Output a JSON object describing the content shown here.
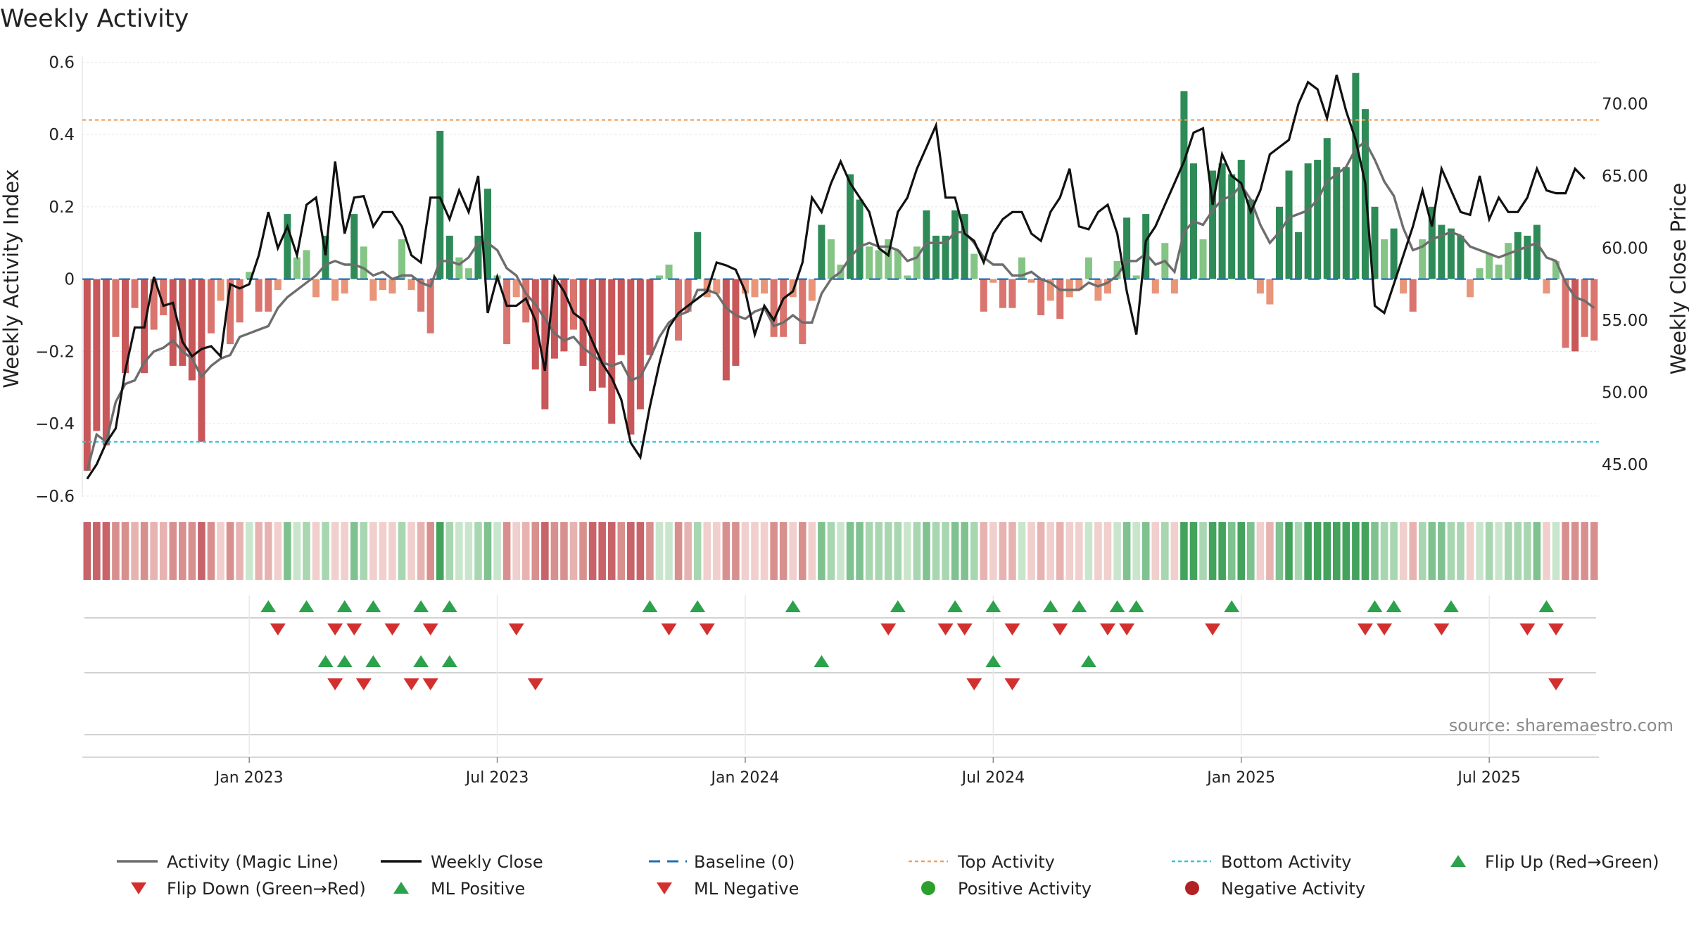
{
  "chart_data": {
    "type": "bar",
    "title": "Weekly Activity",
    "ylabel": "Weekly Activity Index",
    "y2label": "Weekly Close Price",
    "ylim": [
      -0.62,
      0.62
    ],
    "y2lim": [
      42.5,
      73.5
    ],
    "yticks": [
      0.6,
      0.4,
      0.2,
      0,
      -0.2,
      -0.4,
      -0.6
    ],
    "ytick_labels": [
      "0.6",
      "0.4",
      "0.2",
      "0",
      "−0.2",
      "−0.4",
      "−0.6"
    ],
    "y2ticks": [
      70,
      65,
      60,
      55,
      50,
      45
    ],
    "y2tick_labels": [
      "70.00",
      "65.00",
      "60.00",
      "55.00",
      "50.00",
      "45.00"
    ],
    "xticks": [
      {
        "label": "Jan 2023",
        "index": 17
      },
      {
        "label": "Jul 2023",
        "index": 43
      },
      {
        "label": "Jan 2024",
        "index": 69
      },
      {
        "label": "Jul 2024",
        "index": 95
      },
      {
        "label": "Jan 2025",
        "index": 121
      },
      {
        "label": "Jul 2025",
        "index": 147
      }
    ],
    "top_activity": 0.44,
    "bottom_activity": -0.45,
    "baseline": 0,
    "series": [
      {
        "name": "Weekly Activity Index",
        "values": [
          -0.53,
          -0.42,
          -0.46,
          -0.16,
          -0.26,
          -0.08,
          -0.26,
          -0.14,
          -0.1,
          -0.24,
          -0.24,
          -0.28,
          -0.45,
          -0.15,
          -0.06,
          -0.18,
          -0.12,
          0.02,
          -0.09,
          -0.09,
          -0.03,
          0.18,
          0.06,
          0.08,
          -0.05,
          0.12,
          -0.06,
          -0.04,
          0.18,
          0.09,
          -0.06,
          -0.03,
          -0.04,
          0.11,
          -0.03,
          -0.09,
          -0.15,
          0.41,
          0.12,
          0.06,
          0.03,
          0.12,
          0.25,
          0.01,
          -0.18,
          -0.05,
          -0.12,
          -0.25,
          -0.36,
          -0.22,
          -0.2,
          -0.14,
          -0.24,
          -0.31,
          -0.3,
          -0.4,
          -0.21,
          -0.43,
          -0.36,
          -0.21,
          0.01,
          0.04,
          -0.17,
          -0.09,
          0.13,
          -0.05,
          -0.04,
          -0.28,
          -0.24,
          -0.04,
          -0.05,
          -0.04,
          -0.16,
          -0.16,
          -0.05,
          -0.18,
          -0.06,
          0.15,
          0.11,
          0.04,
          0.29,
          0.22,
          0.09,
          0.08,
          0.11,
          0.08,
          0.01,
          0.09,
          0.19,
          0.12,
          0.12,
          0.19,
          0.18,
          0.07,
          -0.09,
          -0.01,
          -0.08,
          -0.08,
          0.06,
          -0.01,
          -0.1,
          -0.06,
          -0.11,
          -0.05,
          -0.03,
          0.06,
          -0.06,
          -0.04,
          0.05,
          0.17,
          0.01,
          0.18,
          -0.04,
          0.1,
          -0.04,
          0.52,
          0.32,
          0.11,
          0.3,
          0.32,
          0.29,
          0.33,
          0.22,
          -0.04,
          -0.07,
          0.2,
          0.3,
          0.13,
          0.32,
          0.33,
          0.39,
          0.31,
          0.31,
          0.57,
          0.47,
          0.2,
          0.11,
          0.14,
          -0.04,
          -0.09,
          0.11,
          0.2,
          0.15,
          0.14,
          0.12,
          -0.05,
          0.03,
          0.07,
          0.04,
          0.1,
          0.13,
          0.12,
          0.15,
          -0.04,
          0.05,
          -0.19,
          -0.2,
          -0.16,
          -0.17
        ]
      },
      {
        "name": "Activity (Magic Line)",
        "values": [
          -0.53,
          -0.43,
          -0.45,
          -0.34,
          -0.29,
          -0.28,
          -0.23,
          -0.2,
          -0.19,
          -0.17,
          -0.2,
          -0.22,
          -0.27,
          -0.24,
          -0.22,
          -0.21,
          -0.16,
          -0.15,
          -0.14,
          -0.13,
          -0.08,
          -0.05,
          -0.03,
          -0.01,
          0.01,
          0.04,
          0.05,
          0.04,
          0.04,
          0.03,
          0.01,
          0.02,
          0.0,
          0.01,
          0.01,
          -0.01,
          -0.02,
          0.05,
          0.05,
          0.04,
          0.06,
          0.1,
          0.1,
          0.08,
          0.03,
          0.01,
          -0.04,
          -0.07,
          -0.11,
          -0.15,
          -0.17,
          -0.16,
          -0.19,
          -0.21,
          -0.23,
          -0.24,
          -0.23,
          -0.28,
          -0.27,
          -0.22,
          -0.16,
          -0.12,
          -0.1,
          -0.09,
          -0.03,
          -0.03,
          -0.04,
          -0.08,
          -0.1,
          -0.11,
          -0.09,
          -0.08,
          -0.13,
          -0.12,
          -0.1,
          -0.12,
          -0.12,
          -0.04,
          0.0,
          0.02,
          0.06,
          0.09,
          0.1,
          0.09,
          0.09,
          0.08,
          0.05,
          0.06,
          0.1,
          0.1,
          0.1,
          0.13,
          0.13,
          0.1,
          0.06,
          0.04,
          0.04,
          0.01,
          0.01,
          0.02,
          0.0,
          -0.01,
          -0.03,
          -0.03,
          -0.03,
          -0.01,
          -0.02,
          -0.01,
          0.01,
          0.05,
          0.05,
          0.07,
          0.04,
          0.05,
          0.02,
          0.13,
          0.16,
          0.15,
          0.19,
          0.22,
          0.23,
          0.26,
          0.22,
          0.15,
          0.1,
          0.13,
          0.17,
          0.18,
          0.19,
          0.22,
          0.27,
          0.29,
          0.31,
          0.36,
          0.38,
          0.33,
          0.27,
          0.23,
          0.14,
          0.08,
          0.09,
          0.11,
          0.12,
          0.13,
          0.12,
          0.09,
          0.08,
          0.07,
          0.06,
          0.07,
          0.08,
          0.09,
          0.1,
          0.06,
          0.05,
          -0.01,
          -0.05,
          -0.06,
          -0.08
        ]
      },
      {
        "name": "Weekly Close",
        "values": [
          44.0,
          45.0,
          46.5,
          47.5,
          51.5,
          54.5,
          54.5,
          58.0,
          56.0,
          56.2,
          53.5,
          52.5,
          53.0,
          53.2,
          52.5,
          57.5,
          57.2,
          57.5,
          59.5,
          62.5,
          60.0,
          61.5,
          59.5,
          63.0,
          63.5,
          59.5,
          66.0,
          61.0,
          63.5,
          63.6,
          61.5,
          62.5,
          62.5,
          61.5,
          59.5,
          59.0,
          63.5,
          63.5,
          62.0,
          64.0,
          62.5,
          65.0,
          55.5,
          58.0,
          56.0,
          56.0,
          56.5,
          55.0,
          51.5,
          58.0,
          57.0,
          55.5,
          55.0,
          53.5,
          52.0,
          51.0,
          49.5,
          46.5,
          45.5,
          49.0,
          52.0,
          54.5,
          55.5,
          56.0,
          56.5,
          57.0,
          59.0,
          58.8,
          58.5,
          57.0,
          54.0,
          56.0,
          55.0,
          56.5,
          57.0,
          59.0,
          63.5,
          62.5,
          64.5,
          66.0,
          64.5,
          63.5,
          62.5,
          60.0,
          59.5,
          62.5,
          63.5,
          65.5,
          67.0,
          68.5,
          63.5,
          63.5,
          61.0,
          60.5,
          59.0,
          61.0,
          62.0,
          62.5,
          62.5,
          61.0,
          60.5,
          62.5,
          63.5,
          65.5,
          61.5,
          61.3,
          62.5,
          63.0,
          61.0,
          57.0,
          54.0,
          60.5,
          61.5,
          63.0,
          64.5,
          66.0,
          68.0,
          68.3,
          63.0,
          66.5,
          65.0,
          64.5,
          62.5,
          64.0,
          66.5,
          67.0,
          67.5,
          70.0,
          71.5,
          71.0,
          69.0,
          72.0,
          69.5,
          67.5,
          64.5,
          56.0,
          55.5,
          57.5,
          59.5,
          61.5,
          64.0,
          61.5,
          65.5,
          64.0,
          62.5,
          62.3,
          65.0,
          62.0,
          63.5,
          62.5,
          62.5,
          63.5,
          65.5,
          64.0,
          63.8,
          63.8,
          65.5,
          64.8
        ]
      }
    ],
    "bar_colors": {
      "strong_positive": "#2e8b57",
      "weak_positive": "#84c484",
      "strong_negative": "#c8575a",
      "weak_negative": "#e8957a"
    },
    "signal_rows": [
      {
        "name": "Flip",
        "up_indices": [
          19,
          23,
          27,
          30,
          35,
          38,
          59,
          64,
          74,
          85,
          91,
          95,
          101,
          104,
          108,
          110,
          120,
          135,
          137,
          143,
          153
        ],
        "down_indices": [
          20,
          26,
          28,
          32,
          36,
          45,
          61,
          65,
          84,
          90,
          92,
          97,
          102,
          107,
          109,
          118,
          134,
          136,
          142,
          151,
          154
        ]
      },
      {
        "name": "ML",
        "up_indices": [
          25,
          27,
          30,
          35,
          38,
          77,
          95,
          105
        ],
        "down_indices": [
          26,
          29,
          34,
          36,
          47,
          93,
          97,
          154
        ]
      },
      {
        "name": "Activity",
        "up_indices": [],
        "down_indices": []
      }
    ],
    "legend": [
      {
        "label": "Activity (Magic Line)",
        "kind": "line",
        "color": "#6d6d6d"
      },
      {
        "label": "Weekly Close",
        "kind": "line",
        "color": "#111111"
      },
      {
        "label": "Baseline (0)",
        "kind": "dash",
        "color": "#1f6fb5"
      },
      {
        "label": "Top Activity",
        "kind": "dot",
        "color": "#f0a060"
      },
      {
        "label": "Bottom Activity",
        "kind": "dot",
        "color": "#2cc7d6"
      },
      {
        "label": "Flip Up (Red→Green)",
        "kind": "tri-up",
        "color": "#2ca24c"
      },
      {
        "label": "Flip Down (Green→Red)",
        "kind": "tri-down",
        "color": "#d32f2f"
      },
      {
        "label": "ML Positive",
        "kind": "tri-up",
        "color": "#2ca24c"
      },
      {
        "label": "ML Negative",
        "kind": "tri-down",
        "color": "#d32f2f"
      },
      {
        "label": "Positive Activity",
        "kind": "circle",
        "color": "#2ca02c"
      },
      {
        "label": "Negative Activity",
        "kind": "circle",
        "color": "#b22222"
      }
    ],
    "source": "source: sharemaestro.com"
  }
}
